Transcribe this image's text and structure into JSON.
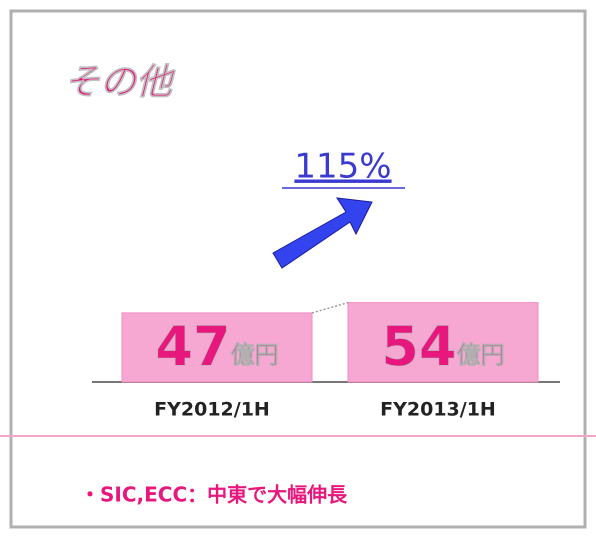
{
  "chart_data": {
    "type": "bar",
    "title": "その他",
    "categories": [
      "FY2012/1H",
      "FY2013/1H"
    ],
    "values": [
      47,
      54
    ],
    "unit": "億円",
    "color": "#f7a8d2",
    "growth_label": "115%",
    "note": "・SIC,ECC：中東で大幅伸長"
  }
}
